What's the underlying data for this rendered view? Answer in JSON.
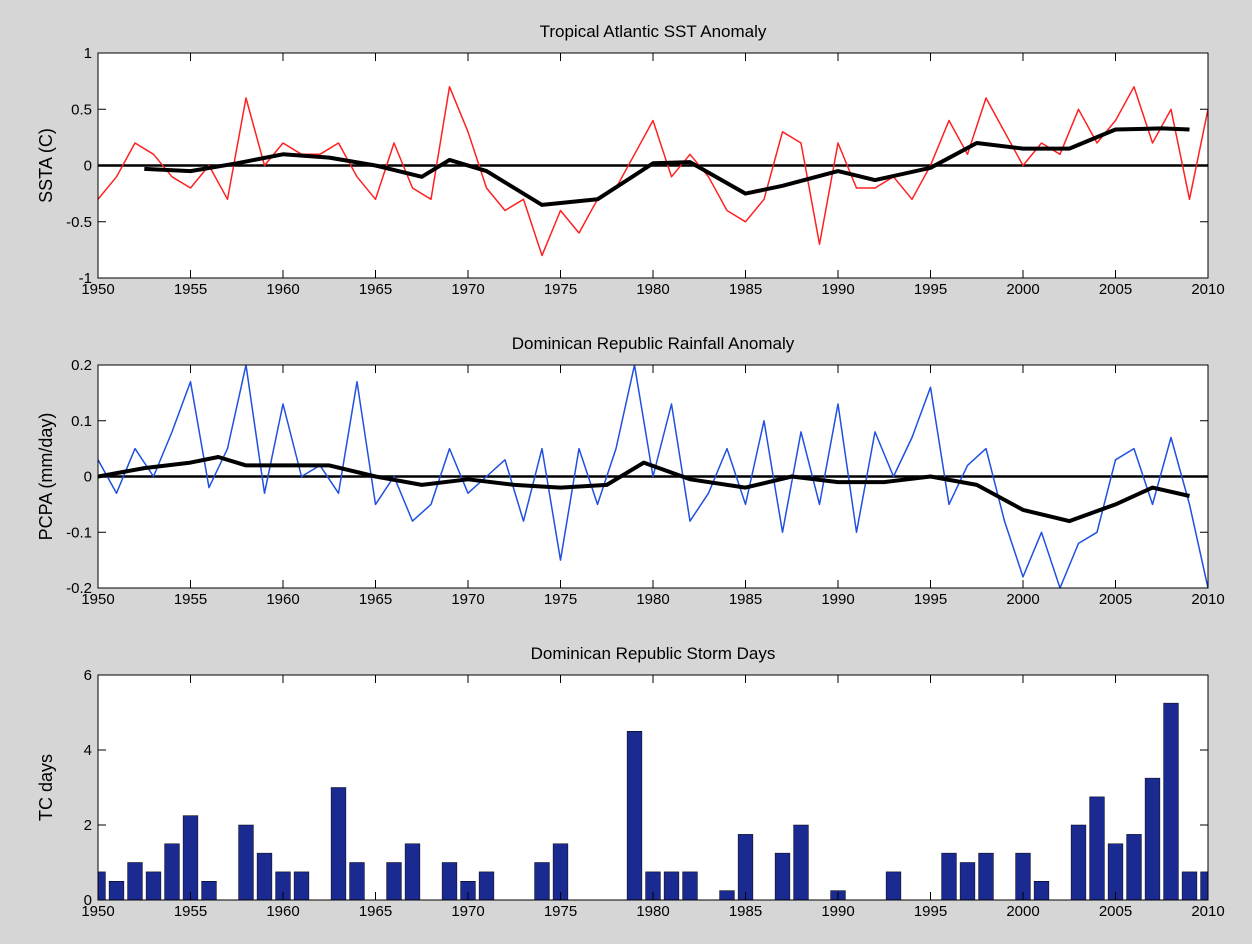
{
  "chart_data": [
    {
      "type": "line",
      "title": "Tropical Atlantic SST Anomaly",
      "y_label": "SSTA (C)",
      "xlim": [
        1950,
        2010
      ],
      "xticks": [
        1950,
        1955,
        1960,
        1965,
        1970,
        1975,
        1980,
        1985,
        1990,
        1995,
        2000,
        2005,
        2010
      ],
      "ylim": [
        -1,
        1
      ],
      "yticks": [
        -1,
        -0.5,
        0,
        0.5,
        1
      ],
      "hline": 0,
      "series": [
        {
          "color": "#ff2020",
          "width": 1.5,
          "x": [
            1950,
            1951,
            1952,
            1953,
            1954,
            1955,
            1956,
            1957,
            1958,
            1959,
            1960,
            1961,
            1962,
            1963,
            1964,
            1965,
            1966,
            1967,
            1968,
            1969,
            1970,
            1971,
            1972,
            1973,
            1974,
            1975,
            1976,
            1977,
            1978,
            1979,
            1980,
            1981,
            1982,
            1983,
            1984,
            1985,
            1986,
            1987,
            1988,
            1989,
            1990,
            1991,
            1992,
            1993,
            1994,
            1995,
            1996,
            1997,
            1998,
            1999,
            2000,
            2001,
            2002,
            2003,
            2004,
            2005,
            2006,
            2007,
            2008,
            2009,
            2010
          ],
          "values": [
            -0.3,
            -0.1,
            0.2,
            0.1,
            -0.1,
            -0.2,
            0.0,
            -0.3,
            0.6,
            0.0,
            0.2,
            0.1,
            0.1,
            0.2,
            -0.1,
            -0.3,
            0.2,
            -0.2,
            -0.3,
            0.7,
            0.3,
            -0.2,
            -0.4,
            -0.3,
            -0.8,
            -0.4,
            -0.6,
            -0.3,
            -0.2,
            0.1,
            0.4,
            -0.1,
            0.1,
            -0.1,
            -0.4,
            -0.5,
            -0.3,
            0.3,
            0.2,
            -0.7,
            0.2,
            -0.2,
            -0.2,
            -0.1,
            -0.3,
            0.0,
            0.4,
            0.1,
            0.6,
            0.3,
            0.0,
            0.2,
            0.1,
            0.5,
            0.2,
            0.4,
            0.7,
            0.2,
            0.5,
            -0.3,
            0.5
          ]
        },
        {
          "color": "#000000",
          "width": 4,
          "x": [
            1952.5,
            1955,
            1957.5,
            1960,
            1962.5,
            1965,
            1967.5,
            1969,
            1971,
            1974,
            1977,
            1980,
            1982,
            1985,
            1987,
            1990,
            1992,
            1995,
            1997.5,
            2000,
            2002.5,
            2005,
            2007.5,
            2009
          ],
          "values": [
            -0.03,
            -0.05,
            0.02,
            0.1,
            0.07,
            0.0,
            -0.1,
            0.05,
            -0.05,
            -0.35,
            -0.3,
            0.02,
            0.03,
            -0.25,
            -0.18,
            -0.05,
            -0.13,
            -0.02,
            0.2,
            0.15,
            0.15,
            0.32,
            0.33,
            0.32
          ]
        }
      ]
    },
    {
      "type": "line",
      "title": "Dominican Republic Rainfall Anomaly",
      "y_label": "PCPA (mm/day)",
      "xlim": [
        1950,
        2010
      ],
      "xticks": [
        1950,
        1955,
        1960,
        1965,
        1970,
        1975,
        1980,
        1985,
        1990,
        1995,
        2000,
        2005,
        2010
      ],
      "ylim": [
        -0.2,
        0.2
      ],
      "yticks": [
        -0.2,
        -0.1,
        0,
        0.1,
        0.2
      ],
      "hline": 0,
      "series": [
        {
          "color": "#2050e0",
          "width": 1.5,
          "x": [
            1950,
            1951,
            1952,
            1953,
            1954,
            1955,
            1956,
            1957,
            1958,
            1959,
            1960,
            1961,
            1962,
            1963,
            1964,
            1965,
            1966,
            1967,
            1968,
            1969,
            1970,
            1971,
            1972,
            1973,
            1974,
            1975,
            1976,
            1977,
            1978,
            1979,
            1980,
            1981,
            1982,
            1983,
            1984,
            1985,
            1986,
            1987,
            1988,
            1989,
            1990,
            1991,
            1992,
            1993,
            1994,
            1995,
            1996,
            1997,
            1998,
            1999,
            2000,
            2001,
            2002,
            2003,
            2004,
            2005,
            2006,
            2007,
            2008,
            2009,
            2010
          ],
          "values": [
            0.03,
            -0.03,
            0.05,
            0.0,
            0.08,
            0.17,
            -0.02,
            0.05,
            0.2,
            -0.03,
            0.13,
            0.0,
            0.02,
            -0.03,
            0.17,
            -0.05,
            0.0,
            -0.08,
            -0.05,
            0.05,
            -0.03,
            0.0,
            0.03,
            -0.08,
            0.05,
            -0.15,
            0.05,
            -0.05,
            0.05,
            0.2,
            0.0,
            0.13,
            -0.08,
            -0.03,
            0.05,
            -0.05,
            0.1,
            -0.1,
            0.08,
            -0.05,
            0.13,
            -0.1,
            0.08,
            0.0,
            0.07,
            0.16,
            -0.05,
            0.02,
            0.05,
            -0.08,
            -0.18,
            -0.1,
            -0.2,
            -0.12,
            -0.1,
            0.03,
            0.05,
            -0.05,
            0.07,
            -0.05,
            -0.2
          ]
        },
        {
          "color": "#000000",
          "width": 4,
          "x": [
            1950,
            1952.5,
            1955,
            1956.5,
            1958,
            1960,
            1962.5,
            1965,
            1967.5,
            1970,
            1972.5,
            1975,
            1977.5,
            1979.5,
            1982,
            1985,
            1987.5,
            1990,
            1992.5,
            1995,
            1997.5,
            2000,
            2002.5,
            2005,
            2007,
            2009
          ],
          "values": [
            0.0,
            0.015,
            0.025,
            0.035,
            0.02,
            0.02,
            0.02,
            0.0,
            -0.015,
            -0.005,
            -0.015,
            -0.02,
            -0.015,
            0.025,
            -0.005,
            -0.02,
            0.0,
            -0.01,
            -0.01,
            0.0,
            -0.015,
            -0.06,
            -0.08,
            -0.05,
            -0.02,
            -0.035
          ]
        }
      ]
    },
    {
      "type": "bar",
      "title": "Dominican Republic Storm Days",
      "y_label": "TC days",
      "xlim": [
        1950,
        2010
      ],
      "xticks": [
        1950,
        1955,
        1960,
        1965,
        1970,
        1975,
        1980,
        1985,
        1990,
        1995,
        2000,
        2005,
        2010
      ],
      "ylim": [
        0,
        6
      ],
      "yticks": [
        0,
        2,
        4,
        6
      ],
      "color": "#1a2a90",
      "x": [
        1950,
        1951,
        1952,
        1953,
        1954,
        1955,
        1956,
        1957,
        1958,
        1959,
        1960,
        1961,
        1962,
        1963,
        1964,
        1965,
        1966,
        1967,
        1968,
        1969,
        1970,
        1971,
        1972,
        1973,
        1974,
        1975,
        1976,
        1977,
        1978,
        1979,
        1980,
        1981,
        1982,
        1983,
        1984,
        1985,
        1986,
        1987,
        1988,
        1989,
        1990,
        1991,
        1992,
        1993,
        1994,
        1995,
        1996,
        1997,
        1998,
        1999,
        2000,
        2001,
        2002,
        2003,
        2004,
        2005,
        2006,
        2007,
        2008,
        2009,
        2010
      ],
      "values": [
        0.75,
        0.5,
        1,
        0.75,
        1.5,
        2.25,
        0.5,
        0,
        2,
        1.25,
        0.75,
        0.75,
        0,
        3,
        1,
        0,
        1,
        1.5,
        0,
        1,
        0.5,
        0.75,
        0,
        0,
        1,
        1.5,
        0,
        0,
        0,
        4.5,
        0.75,
        0.75,
        0.75,
        0,
        0.25,
        1.75,
        0,
        1.25,
        2,
        0,
        0.25,
        0,
        0,
        0.75,
        0,
        0,
        1.25,
        1,
        1.25,
        0,
        1.25,
        0.5,
        0,
        2,
        2.75,
        1.5,
        1.75,
        3.25,
        5.25,
        0.75,
        0.75
      ]
    }
  ]
}
